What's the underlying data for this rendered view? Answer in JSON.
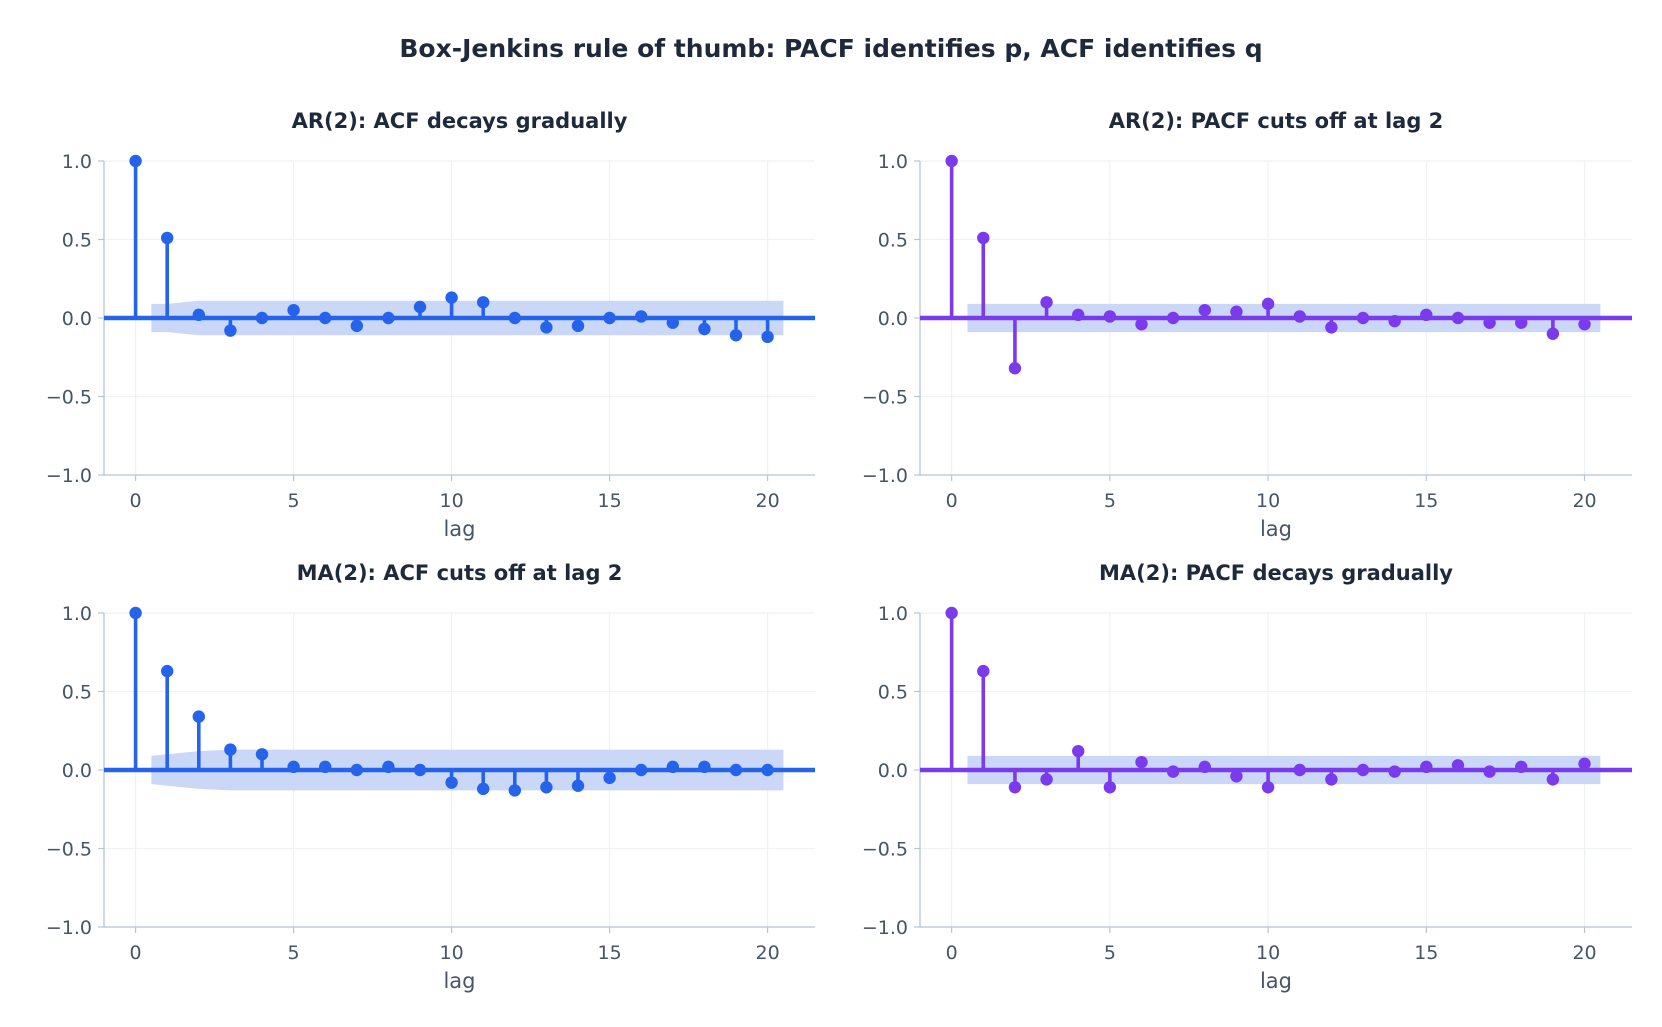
{
  "figure_title": "Box-Jenkins rule of thumb: PACF identifies p, ACF identifies q",
  "colors": {
    "acf": "#2563eb",
    "pacf": "#7c3aed",
    "confidence_band": "#c7d5f6",
    "text": "#1e293b",
    "tick_text": "#475569"
  },
  "chart_data": [
    {
      "type": "stem",
      "title": "AR(2):  ACF decays gradually",
      "xlabel": "lag",
      "ylabel": "",
      "xlim": [
        -1,
        21.5
      ],
      "ylim": [
        -1.0,
        1.0
      ],
      "xticks": [
        0,
        5,
        10,
        15,
        20
      ],
      "yticks": [
        1.0,
        0.5,
        0.0,
        -0.5,
        -1.0
      ],
      "ytick_labels": [
        "1.0",
        "0.5",
        "0.0",
        "−0.5",
        "−1.0"
      ],
      "grid": true,
      "color": "acf",
      "band": {
        "x": [
          0.5,
          1,
          2,
          3,
          4,
          5,
          6,
          7,
          8,
          9,
          10,
          11,
          12,
          13,
          14,
          15,
          16,
          17,
          18,
          19,
          20,
          20.5
        ],
        "upper": [
          0.09,
          0.09,
          0.11,
          0.11,
          0.11,
          0.11,
          0.11,
          0.11,
          0.11,
          0.11,
          0.11,
          0.11,
          0.11,
          0.11,
          0.11,
          0.11,
          0.11,
          0.11,
          0.11,
          0.11,
          0.11,
          0.11
        ]
      },
      "x": [
        0,
        1,
        2,
        3,
        4,
        5,
        6,
        7,
        8,
        9,
        10,
        11,
        12,
        13,
        14,
        15,
        16,
        17,
        18,
        19,
        20
      ],
      "values": [
        1.0,
        0.51,
        0.02,
        -0.08,
        0.0,
        0.05,
        0.0,
        -0.05,
        0.0,
        0.07,
        0.13,
        0.1,
        0.0,
        -0.06,
        -0.05,
        0.0,
        0.01,
        -0.03,
        -0.07,
        -0.11,
        -0.12
      ]
    },
    {
      "type": "stem",
      "title": "AR(2):  PACF cuts off at lag 2",
      "xlabel": "lag",
      "ylabel": "",
      "xlim": [
        -1,
        21.5
      ],
      "ylim": [
        -1.0,
        1.0
      ],
      "xticks": [
        0,
        5,
        10,
        15,
        20
      ],
      "yticks": [
        1.0,
        0.5,
        0.0,
        -0.5,
        -1.0
      ],
      "ytick_labels": [
        "1.0",
        "0.5",
        "0.0",
        "−0.5",
        "−1.0"
      ],
      "grid": true,
      "color": "pacf",
      "band": {
        "x": [
          0.5,
          20.5
        ],
        "upper": [
          0.09,
          0.09
        ]
      },
      "x": [
        0,
        1,
        2,
        3,
        4,
        5,
        6,
        7,
        8,
        9,
        10,
        11,
        12,
        13,
        14,
        15,
        16,
        17,
        18,
        19,
        20
      ],
      "values": [
        1.0,
        0.51,
        -0.32,
        0.1,
        0.02,
        0.01,
        -0.04,
        0.0,
        0.05,
        0.04,
        0.09,
        0.01,
        -0.06,
        0.0,
        -0.02,
        0.02,
        0.0,
        -0.03,
        -0.03,
        -0.1,
        -0.04
      ]
    },
    {
      "type": "stem",
      "title": "MA(2):  ACF cuts off at lag 2",
      "xlabel": "lag",
      "ylabel": "",
      "xlim": [
        -1,
        21.5
      ],
      "ylim": [
        -1.0,
        1.0
      ],
      "xticks": [
        0,
        5,
        10,
        15,
        20
      ],
      "yticks": [
        1.0,
        0.5,
        0.0,
        -0.5,
        -1.0
      ],
      "ytick_labels": [
        "1.0",
        "0.5",
        "0.0",
        "−0.5",
        "−1.0"
      ],
      "grid": true,
      "color": "acf",
      "band": {
        "x": [
          0.5,
          1,
          2,
          3,
          4,
          5,
          6,
          7,
          8,
          9,
          10,
          11,
          12,
          13,
          14,
          15,
          16,
          17,
          18,
          19,
          20,
          20.5
        ],
        "upper": [
          0.09,
          0.1,
          0.12,
          0.13,
          0.13,
          0.13,
          0.13,
          0.13,
          0.13,
          0.13,
          0.13,
          0.13,
          0.13,
          0.13,
          0.13,
          0.13,
          0.13,
          0.13,
          0.13,
          0.13,
          0.13,
          0.13
        ]
      },
      "x": [
        0,
        1,
        2,
        3,
        4,
        5,
        6,
        7,
        8,
        9,
        10,
        11,
        12,
        13,
        14,
        15,
        16,
        17,
        18,
        19,
        20
      ],
      "values": [
        1.0,
        0.63,
        0.34,
        0.13,
        0.1,
        0.02,
        0.02,
        0.0,
        0.02,
        0.0,
        -0.08,
        -0.12,
        -0.13,
        -0.11,
        -0.1,
        -0.05,
        0.0,
        0.02,
        0.02,
        0.0,
        0.0
      ]
    },
    {
      "type": "stem",
      "title": "MA(2):  PACF decays gradually",
      "xlabel": "lag",
      "ylabel": "",
      "xlim": [
        -1,
        21.5
      ],
      "ylim": [
        -1.0,
        1.0
      ],
      "xticks": [
        0,
        5,
        10,
        15,
        20
      ],
      "yticks": [
        1.0,
        0.5,
        0.0,
        -0.5,
        -1.0
      ],
      "ytick_labels": [
        "1.0",
        "0.5",
        "0.0",
        "−0.5",
        "−1.0"
      ],
      "grid": true,
      "color": "pacf",
      "band": {
        "x": [
          0.5,
          20.5
        ],
        "upper": [
          0.09,
          0.09
        ]
      },
      "x": [
        0,
        1,
        2,
        3,
        4,
        5,
        6,
        7,
        8,
        9,
        10,
        11,
        12,
        13,
        14,
        15,
        16,
        17,
        18,
        19,
        20
      ],
      "values": [
        1.0,
        0.63,
        -0.11,
        -0.06,
        0.12,
        -0.11,
        0.05,
        -0.01,
        0.02,
        -0.04,
        -0.11,
        0.0,
        -0.06,
        0.0,
        -0.01,
        0.02,
        0.03,
        -0.01,
        0.02,
        -0.06,
        0.04
      ]
    }
  ]
}
